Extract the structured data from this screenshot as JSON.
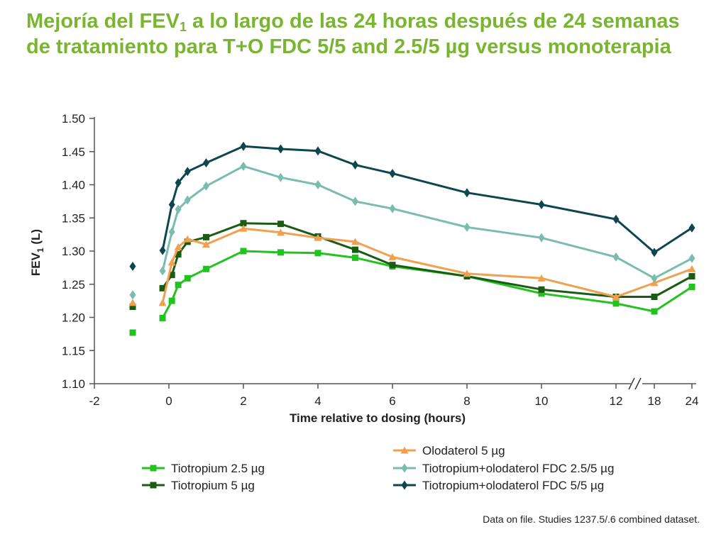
{
  "title": {
    "part1": "Mejoría del FEV",
    "sub": "1",
    "part2": " a lo largo de las 24 horas después de 24 semanas de tratamiento para T+O FDC 5/5 and 2.5/5 µg versus monoterapia"
  },
  "footnote": "Data on file. Studies 1237.5/.6 combined dataset.",
  "chart_data": {
    "type": "line",
    "xlabel": "Time relative to dosing (hours)",
    "ylabel": "FEV",
    "ylabel_sub": "1",
    "ylabel_unit": " (L)",
    "ylim": [
      1.1,
      1.5
    ],
    "yticks": [
      "1.10",
      "1.15",
      "1.20",
      "1.25",
      "1.30",
      "1.35",
      "1.40",
      "1.45",
      "1.50"
    ],
    "xticks": [
      "-2",
      "0",
      "2",
      "4",
      "6",
      "8",
      "10",
      "12",
      "18",
      "24"
    ],
    "axis_break": "between 12 and 18",
    "grid": false,
    "legend_position": "bottom",
    "series": [
      {
        "name": "Tiotropium 2.5 µg",
        "color": "#22c31f",
        "marker": "square",
        "baseline": 1.177,
        "x": [
          -0.17,
          0.08,
          0.25,
          0.5,
          1,
          2,
          3,
          4,
          5,
          6,
          8,
          10,
          12,
          18,
          24
        ],
        "values": [
          1.199,
          1.225,
          1.249,
          1.259,
          1.273,
          1.3,
          1.298,
          1.297,
          1.29,
          1.277,
          1.262,
          1.236,
          1.221,
          1.209,
          1.246
        ]
      },
      {
        "name": "Tiotropium 5 µg",
        "color": "#1a5c14",
        "marker": "square",
        "baseline": 1.216,
        "x": [
          -0.17,
          0.08,
          0.25,
          0.5,
          1,
          2,
          3,
          4,
          5,
          6,
          8,
          10,
          12,
          18,
          24
        ],
        "values": [
          1.244,
          1.264,
          1.295,
          1.314,
          1.321,
          1.342,
          1.341,
          1.322,
          1.302,
          1.279,
          1.262,
          1.242,
          1.231,
          1.231,
          1.262
        ]
      },
      {
        "name": "Olodaterol 5 µg",
        "color": "#f0a050",
        "marker": "triangle",
        "baseline": 1.222,
        "x": [
          -0.17,
          0.08,
          0.25,
          0.5,
          1,
          2,
          3,
          4,
          5,
          6,
          8,
          10,
          12,
          18,
          24
        ],
        "values": [
          1.222,
          1.283,
          1.306,
          1.318,
          1.31,
          1.334,
          1.328,
          1.32,
          1.314,
          1.291,
          1.266,
          1.259,
          1.231,
          1.252,
          1.273
        ]
      },
      {
        "name": "Tiotropium+olodaterol FDC 2.5/5 µg",
        "color": "#7bbcb0",
        "marker": "diamond",
        "baseline": 1.234,
        "x": [
          -0.17,
          0.08,
          0.25,
          0.5,
          1,
          2,
          3,
          4,
          5,
          6,
          8,
          10,
          12,
          18,
          24
        ],
        "values": [
          1.27,
          1.329,
          1.363,
          1.377,
          1.398,
          1.428,
          1.411,
          1.4,
          1.375,
          1.364,
          1.336,
          1.32,
          1.291,
          1.259,
          1.289
        ]
      },
      {
        "name": "Tiotropium+olodaterol FDC 5/5 µg",
        "color": "#0e4650",
        "marker": "diamond",
        "baseline": 1.277,
        "x": [
          -0.17,
          0.08,
          0.25,
          0.5,
          1,
          2,
          3,
          4,
          5,
          6,
          8,
          10,
          12,
          18,
          24
        ],
        "values": [
          1.301,
          1.37,
          1.403,
          1.42,
          1.433,
          1.458,
          1.454,
          1.451,
          1.43,
          1.417,
          1.388,
          1.37,
          1.348,
          1.298,
          1.335
        ]
      }
    ]
  }
}
